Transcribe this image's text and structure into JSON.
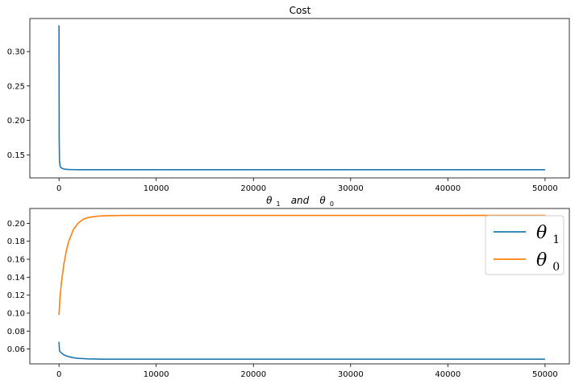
{
  "chart_data": [
    {
      "type": "line",
      "title": "Cost",
      "xlabel": "",
      "ylabel": "",
      "xlim": [
        -3000,
        52500
      ],
      "ylim": [
        0.1165,
        0.348
      ],
      "xticks": [
        0,
        10000,
        20000,
        30000,
        40000,
        50000
      ],
      "xtick_labels": [
        "0",
        "10000",
        "20000",
        "30000",
        "40000",
        "50000"
      ],
      "yticks": [
        0.15,
        0.2,
        0.25,
        0.3
      ],
      "ytick_labels": [
        "0.15",
        "0.20",
        "0.25",
        "0.30"
      ],
      "grid": false,
      "series": [
        {
          "color": "#1f77b4",
          "x": [
            0,
            20,
            50,
            100,
            200,
            300,
            500,
            700,
            1000,
            1500,
            2000,
            3000,
            5000,
            10000,
            20000,
            30000,
            40000,
            50000
          ],
          "values": [
            0.338,
            0.175,
            0.142,
            0.134,
            0.1315,
            0.1305,
            0.1295,
            0.129,
            0.1287,
            0.1285,
            0.1284,
            0.1284,
            0.1284,
            0.1284,
            0.1284,
            0.1284,
            0.1284,
            0.1284
          ]
        }
      ]
    },
    {
      "type": "line",
      "title": {
        "theta_a": "θ",
        "sub_a": "1",
        "and": "and",
        "theta_b": "θ",
        "sub_b": "0"
      },
      "xlabel": "",
      "ylabel": "",
      "xlim": [
        -3000,
        52500
      ],
      "ylim": [
        0.0435,
        0.2165
      ],
      "xticks": [
        0,
        10000,
        20000,
        30000,
        40000,
        50000
      ],
      "xtick_labels": [
        "0",
        "10000",
        "20000",
        "30000",
        "40000",
        "50000"
      ],
      "yticks": [
        0.06,
        0.08,
        0.1,
        0.12,
        0.14,
        0.16,
        0.18,
        0.2
      ],
      "ytick_labels": [
        "0.06",
        "0.08",
        "0.10",
        "0.12",
        "0.14",
        "0.16",
        "0.18",
        "0.20"
      ],
      "grid": false,
      "legend_position": "top-right",
      "series": [
        {
          "name": {
            "symbol": "θ",
            "sub": "1"
          },
          "color": "#1f77b4",
          "x": [
            0,
            50,
            200,
            500,
            1000,
            1500,
            2000,
            3000,
            4000,
            5000,
            10000,
            20000,
            30000,
            40000,
            50000
          ],
          "values": [
            0.068,
            0.058,
            0.056,
            0.0535,
            0.0515,
            0.0503,
            0.0496,
            0.049,
            0.0488,
            0.0487,
            0.0487,
            0.0487,
            0.0487,
            0.0487,
            0.0487
          ]
        },
        {
          "name": {
            "symbol": "θ",
            "sub": "0"
          },
          "color": "#ff7f0e",
          "x": [
            0,
            100,
            250,
            500,
            750,
            1000,
            1500,
            2000,
            2500,
            3000,
            4000,
            5000,
            7000,
            10000,
            20000,
            30000,
            40000,
            50000
          ],
          "values": [
            0.098,
            0.117,
            0.134,
            0.1545,
            0.169,
            0.18,
            0.1935,
            0.2005,
            0.2045,
            0.2065,
            0.208,
            0.2085,
            0.2088,
            0.2088,
            0.2088,
            0.2088,
            0.2088,
            0.2088
          ]
        }
      ]
    }
  ]
}
